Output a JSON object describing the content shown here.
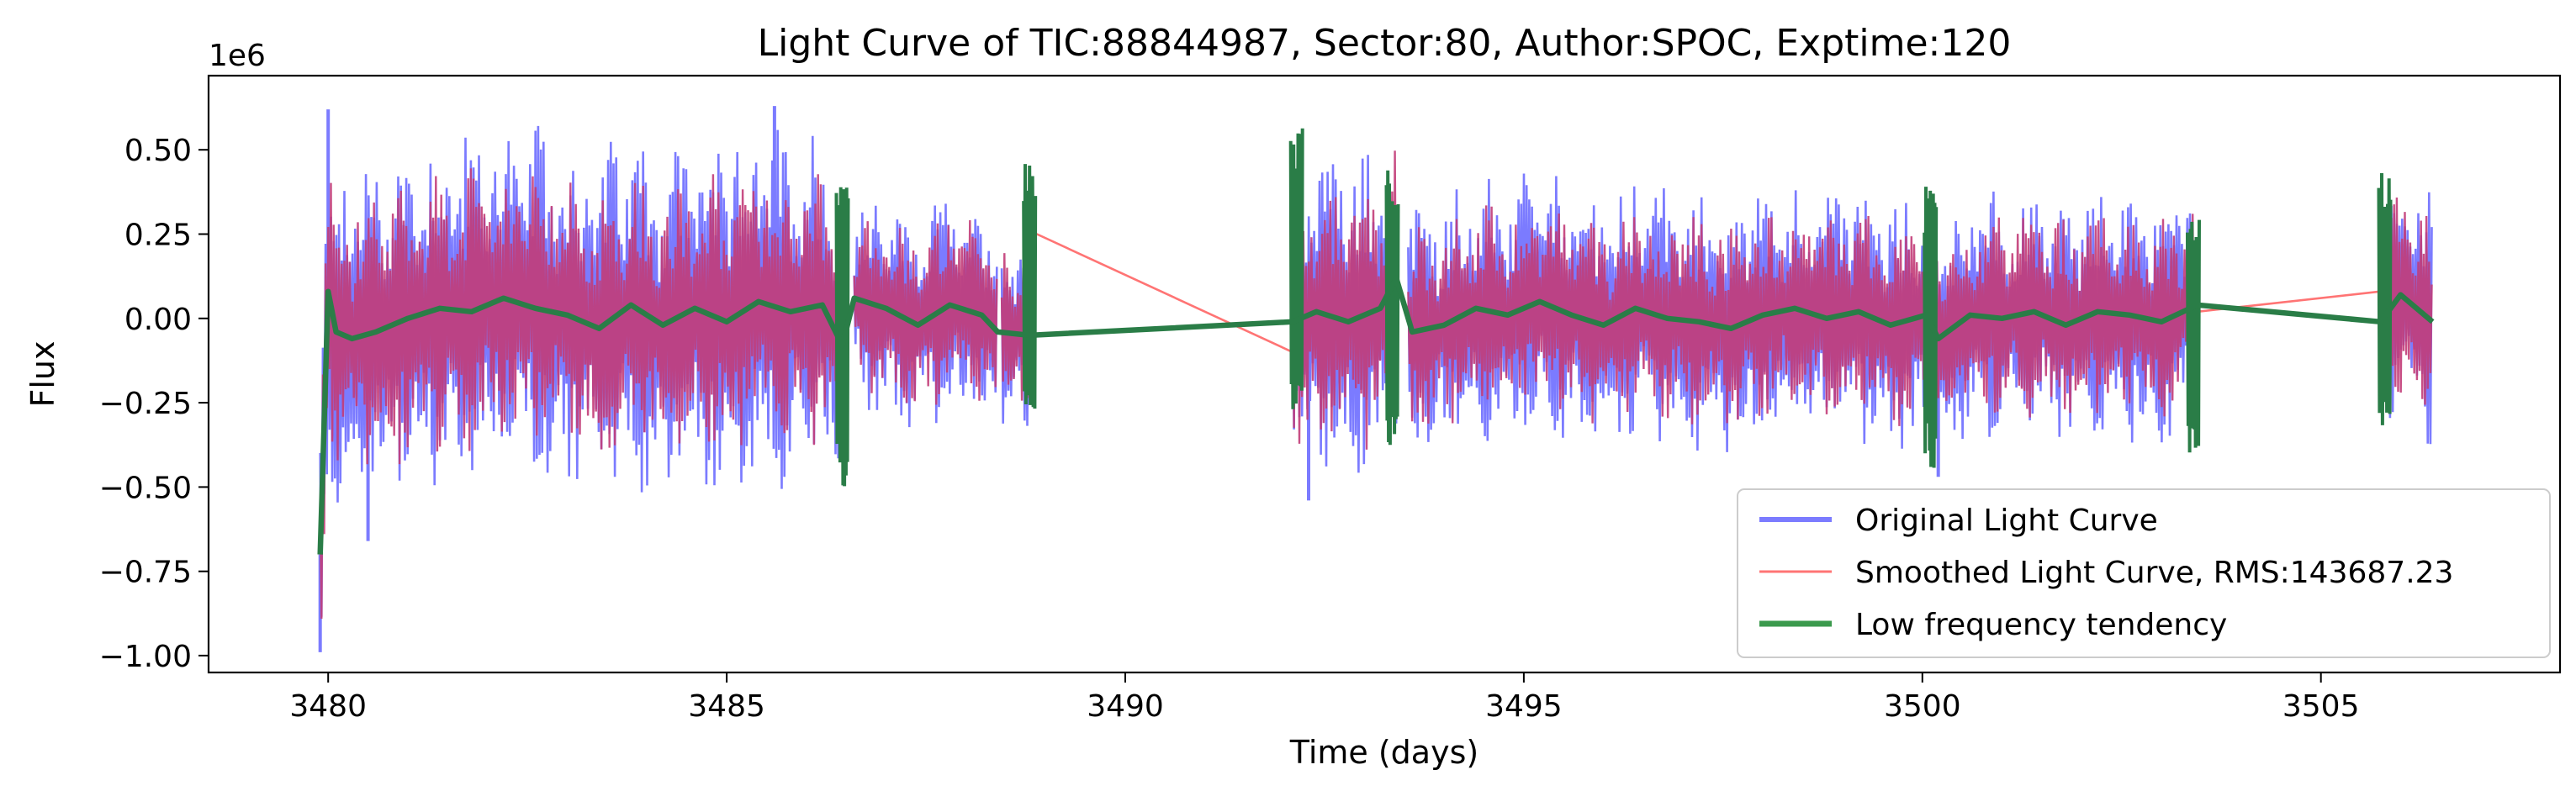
{
  "chart_data": {
    "type": "line",
    "title": "Light Curve of TIC:88844987, Sector:80, Author:SPOC, Exptime:120",
    "xlabel": "Time (days)",
    "ylabel": "Flux",
    "y_offset_label": "1e6",
    "xlim": [
      3478.5,
      3508.0
    ],
    "ylim": [
      -1.05,
      0.72
    ],
    "x_ticks": [
      3480,
      3485,
      3490,
      3495,
      3500,
      3505
    ],
    "x_tick_labels": [
      "3480",
      "3485",
      "3490",
      "3495",
      "3500",
      "3505"
    ],
    "y_ticks": [
      0.5,
      0.25,
      0.0,
      -0.25,
      -0.5,
      -0.75,
      -1.0
    ],
    "y_tick_labels": [
      "0.50",
      "0.25",
      "0.00",
      "−0.25",
      "−0.50",
      "−0.75",
      "−1.00"
    ],
    "grid": false,
    "legend_position": "lower-right",
    "segments": [
      {
        "start": 3479.9,
        "end": 3486.45,
        "amp_orig": 0.55,
        "amp_smooth": 0.45
      },
      {
        "start": 3486.6,
        "end": 3488.4,
        "amp_orig": 0.34,
        "amp_smooth": 0.3
      },
      {
        "start": 3488.45,
        "end": 3488.8,
        "amp_orig": 0.3,
        "amp_smooth": 0.28
      },
      {
        "start": 3492.1,
        "end": 3493.4,
        "amp_orig": 0.5,
        "amp_smooth": 0.44
      },
      {
        "start": 3493.55,
        "end": 3500.05,
        "amp_orig": 0.4,
        "amp_smooth": 0.34
      },
      {
        "start": 3500.15,
        "end": 3503.45,
        "amp_orig": 0.38,
        "amp_smooth": 0.33
      },
      {
        "start": 3505.75,
        "end": 3506.4,
        "amp_orig": 0.38,
        "amp_smooth": 0.33
      }
    ],
    "series": [
      {
        "name": "Original Light Curve",
        "color": "#7b7bff",
        "key_points": [
          [
            3479.9,
            -0.99
          ],
          [
            3480.0,
            0.62
          ],
          [
            3480.5,
            -0.66
          ],
          [
            3485.6,
            0.63
          ],
          [
            3492.3,
            -0.54
          ],
          [
            3500.2,
            -0.47
          ]
        ]
      },
      {
        "name": "Smoothed Light Curve, RMS:143687.23",
        "color": "#ff7474",
        "gap_lines": [
          [
            [
              3488.8,
              0.26
            ],
            [
              3492.1,
              -0.1
            ]
          ],
          [
            [
              3503.45,
              0.02
            ],
            [
              3505.75,
              0.08
            ]
          ]
        ]
      },
      {
        "name": "Low frequency tendency",
        "color": "#2a7d47",
        "x": [
          3479.9,
          3480.0,
          3480.1,
          3480.3,
          3480.6,
          3481.0,
          3481.4,
          3481.8,
          3482.2,
          3482.6,
          3483.0,
          3483.4,
          3483.8,
          3484.2,
          3484.6,
          3485.0,
          3485.4,
          3485.8,
          3486.2,
          3486.45,
          3486.6,
          3487.0,
          3487.4,
          3487.8,
          3488.2,
          3488.4,
          3488.8,
          3492.1,
          3492.4,
          3492.8,
          3493.2,
          3493.4,
          3493.6,
          3494.0,
          3494.4,
          3494.8,
          3495.2,
          3495.6,
          3496.0,
          3496.4,
          3496.8,
          3497.2,
          3497.6,
          3498.0,
          3498.4,
          3498.8,
          3499.2,
          3499.6,
          3500.05,
          3500.2,
          3500.6,
          3501.0,
          3501.4,
          3501.8,
          3502.2,
          3502.6,
          3503.0,
          3503.45,
          3505.75,
          3506.0,
          3506.4
        ],
        "y": [
          -0.7,
          0.08,
          -0.04,
          -0.06,
          -0.04,
          0.0,
          0.03,
          0.02,
          0.06,
          0.03,
          0.01,
          -0.03,
          0.04,
          -0.02,
          0.03,
          -0.01,
          0.05,
          0.02,
          0.04,
          -0.08,
          0.06,
          0.03,
          -0.02,
          0.04,
          0.01,
          -0.04,
          -0.05,
          -0.01,
          0.02,
          -0.01,
          0.03,
          0.12,
          -0.04,
          -0.02,
          0.03,
          0.01,
          0.05,
          0.01,
          -0.02,
          0.03,
          0.0,
          -0.01,
          -0.03,
          0.01,
          0.03,
          0.0,
          0.02,
          -0.02,
          0.01,
          -0.06,
          0.01,
          0.0,
          0.02,
          -0.02,
          0.02,
          0.01,
          -0.01,
          0.04,
          -0.01,
          0.07,
          -0.01
        ],
        "spikes": [
          [
            3486.45,
            0.39,
            -0.53
          ],
          [
            3488.8,
            0.48,
            -0.27
          ],
          [
            3492.15,
            0.57,
            -0.3
          ],
          [
            3493.35,
            0.48,
            -0.4
          ],
          [
            3500.1,
            0.4,
            -0.46
          ],
          [
            3503.4,
            0.31,
            -0.41
          ],
          [
            3505.8,
            0.45,
            -0.33
          ]
        ]
      }
    ]
  }
}
